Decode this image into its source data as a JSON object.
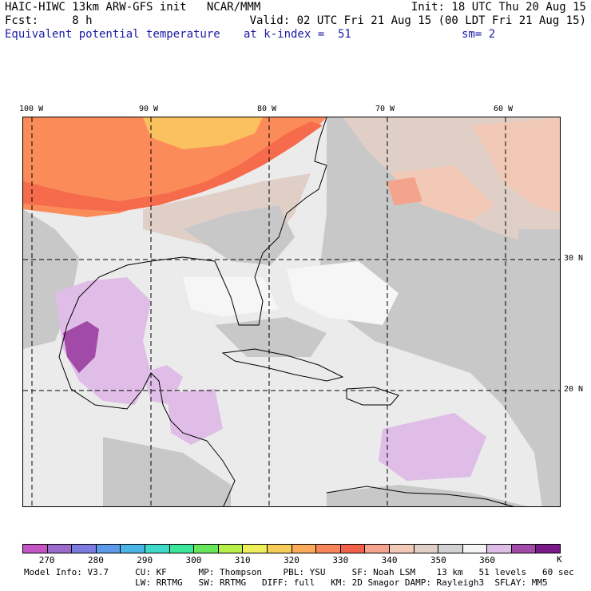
{
  "header": {
    "line1_left": "HAIC-HIWC 13km ARW-GFS init   NCAR/MMM",
    "line1_right": "Init: 18 UTC Thu 20 Aug 15",
    "line2_left": "Fcst:     8 h",
    "line2_right": "Valid: 02 UTC Fri 21 Aug 15 (00 LDT Fri 21 Aug 15)",
    "field_name": "Equivalent potential temperature",
    "level": "at k-index =  51",
    "smoothing": "sm= 2"
  },
  "map": {
    "lon_labels": [
      "100 W",
      "90 W",
      "80 W",
      "70 W",
      "60 W"
    ],
    "lat_labels": [
      "30 N",
      "20 N"
    ],
    "colors": {
      "background": "#ebebeb",
      "very_light": "#f6f6f6",
      "gray": "#c8c8c8",
      "tan": "#e0cfc7",
      "pink_tan": "#f2c9b6",
      "salmon": "#f4a38c",
      "orange_red": "#f56b4c",
      "orange": "#fb8c5a",
      "yellow_orange": "#fbc15e",
      "lilac": "#e0bde6",
      "purple": "#a24aa8",
      "coast": "#000000",
      "grid": "#000000"
    }
  },
  "colorbar": {
    "colors": [
      "#c555c5",
      "#9a6acd",
      "#7b7be0",
      "#5a9ae8",
      "#4ab4e4",
      "#3ed9c8",
      "#3ce69a",
      "#66e65a",
      "#b6ee4a",
      "#eeee5a",
      "#f6cd5a",
      "#fba95a",
      "#f8845a",
      "#f0604a",
      "#f4a38c",
      "#f2c9b6",
      "#e0cfc7",
      "#d2d2d2",
      "#f4f4f4",
      "#e0bde6",
      "#a24aa8",
      "#7a1a8a"
    ],
    "tick_labels": [
      "270",
      "280",
      "290",
      "300",
      "310",
      "320",
      "330",
      "340",
      "350",
      "360"
    ],
    "unit": "K"
  },
  "footer": {
    "line1": "Model Info: V3.7     CU: KF      MP: Thompson    PBL: YSU     SF: Noah LSM    13 km   51 levels   60 sec",
    "line2": "                     LW: RRTMG   SW: RRTMG   DIFF: full   KM: 2D Smagor DAMP: Rayleigh3  SFLAY: MM5"
  }
}
